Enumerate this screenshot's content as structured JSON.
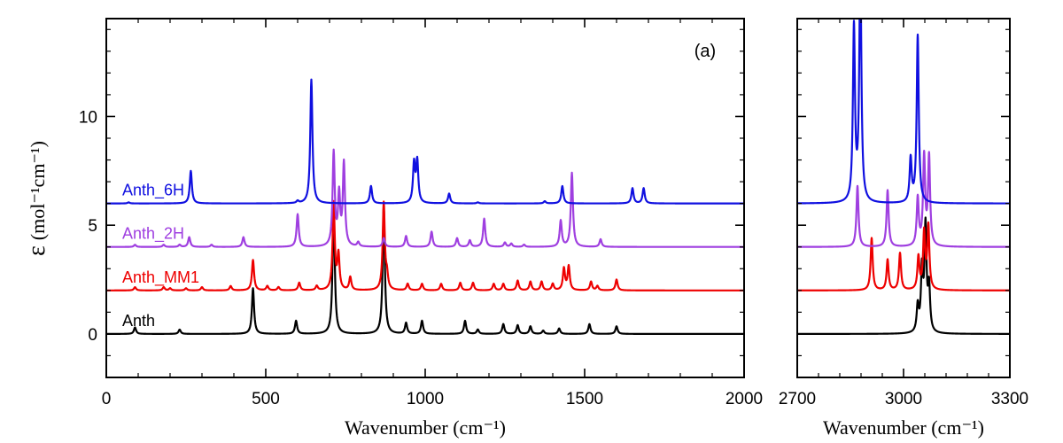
{
  "chart_data": {
    "type": "line",
    "ylabel": "ε (mol⁻¹cm⁻¹)",
    "ylabel_symbol": "ε",
    "ylabel_unit": "(mol⁻¹cm⁻¹)",
    "ylim": [
      -2,
      14.5
    ],
    "yticks": [
      "0",
      "5",
      "10"
    ],
    "panels": [
      {
        "label": "(a)",
        "xlabel": "Wavenumber (cm⁻¹)",
        "xlim": [
          0,
          2000
        ],
        "xticks": [
          "0",
          "500",
          "1000",
          "1500",
          "2000"
        ]
      },
      {
        "label": "",
        "xlabel": "Wavenumber (cm⁻¹)",
        "xlim": [
          2700,
          3300
        ],
        "xticks": [
          "2700",
          "3000",
          "3300"
        ]
      }
    ],
    "series": [
      {
        "name": "Anth",
        "color": "#000000",
        "offset": 0,
        "peaks_left": [
          [
            90,
            0.3
          ],
          [
            230,
            0.2
          ],
          [
            460,
            2.1
          ],
          [
            595,
            0.6
          ],
          [
            713,
            6.0
          ],
          [
            870,
            5.9
          ],
          [
            940,
            0.5
          ],
          [
            990,
            0.6
          ],
          [
            1125,
            0.6
          ],
          [
            1165,
            0.2
          ],
          [
            1245,
            0.45
          ],
          [
            1290,
            0.4
          ],
          [
            1330,
            0.35
          ],
          [
            1370,
            0.15
          ],
          [
            1420,
            0.25
          ],
          [
            1515,
            0.45
          ],
          [
            1600,
            0.35
          ]
        ],
        "peaks_right": [
          [
            3040,
            1.2
          ],
          [
            3052,
            2.8
          ],
          [
            3062,
            4.8
          ],
          [
            3072,
            2.0
          ]
        ]
      },
      {
        "name": "Anth_MM1",
        "color": "#ee0000",
        "offset": 2,
        "peaks_left": [
          [
            90,
            0.15
          ],
          [
            180,
            0.15
          ],
          [
            200,
            0.1
          ],
          [
            250,
            0.1
          ],
          [
            300,
            0.15
          ],
          [
            390,
            0.2
          ],
          [
            460,
            1.4
          ],
          [
            505,
            0.2
          ],
          [
            540,
            0.15
          ],
          [
            605,
            0.35
          ],
          [
            660,
            0.2
          ],
          [
            713,
            4.0
          ],
          [
            728,
            1.6
          ],
          [
            765,
            0.6
          ],
          [
            870,
            4.0
          ],
          [
            880,
            0.6
          ],
          [
            945,
            0.3
          ],
          [
            990,
            0.3
          ],
          [
            1050,
            0.3
          ],
          [
            1110,
            0.35
          ],
          [
            1150,
            0.35
          ],
          [
            1215,
            0.3
          ],
          [
            1245,
            0.3
          ],
          [
            1290,
            0.45
          ],
          [
            1330,
            0.4
          ],
          [
            1365,
            0.4
          ],
          [
            1400,
            0.3
          ],
          [
            1435,
            1.0
          ],
          [
            1450,
            1.1
          ],
          [
            1520,
            0.4
          ],
          [
            1540,
            0.2
          ],
          [
            1600,
            0.5
          ]
        ],
        "peaks_right": [
          [
            2910,
            2.4
          ],
          [
            2955,
            1.4
          ],
          [
            2990,
            1.7
          ],
          [
            3042,
            1.5
          ],
          [
            3058,
            2.6
          ],
          [
            3070,
            2.9
          ]
        ]
      },
      {
        "name": "Anth_2H",
        "color": "#9f3fe0",
        "offset": 4,
        "peaks_left": [
          [
            90,
            0.1
          ],
          [
            180,
            0.1
          ],
          [
            230,
            0.1
          ],
          [
            260,
            0.45
          ],
          [
            330,
            0.1
          ],
          [
            430,
            0.45
          ],
          [
            600,
            1.5
          ],
          [
            713,
            4.3
          ],
          [
            730,
            2.3
          ],
          [
            745,
            3.8
          ],
          [
            790,
            0.2
          ],
          [
            870,
            0.4
          ],
          [
            940,
            0.5
          ],
          [
            1020,
            0.7
          ],
          [
            1100,
            0.4
          ],
          [
            1140,
            0.3
          ],
          [
            1185,
            1.3
          ],
          [
            1250,
            0.2
          ],
          [
            1270,
            0.15
          ],
          [
            1310,
            0.1
          ],
          [
            1425,
            1.2
          ],
          [
            1460,
            3.4
          ],
          [
            1550,
            0.35
          ]
        ],
        "peaks_right": [
          [
            2870,
            2.8
          ],
          [
            2955,
            2.6
          ],
          [
            3040,
            2.2
          ],
          [
            3058,
            4.1
          ],
          [
            3072,
            4.1
          ]
        ]
      },
      {
        "name": "Anth_6H",
        "color": "#1010e0",
        "offset": 6,
        "peaks_left": [
          [
            70,
            0.05
          ],
          [
            265,
            1.5
          ],
          [
            600,
            0.1
          ],
          [
            643,
            5.7
          ],
          [
            830,
            0.8
          ],
          [
            965,
            1.8
          ],
          [
            975,
            1.9
          ],
          [
            1075,
            0.45
          ],
          [
            1165,
            0.05
          ],
          [
            1375,
            0.1
          ],
          [
            1430,
            0.8
          ],
          [
            1650,
            0.7
          ],
          [
            1685,
            0.7
          ]
        ],
        "peaks_right": [
          [
            2860,
            8.0
          ],
          [
            2878,
            11.0
          ],
          [
            3020,
            2.0
          ],
          [
            3040,
            7.7
          ]
        ]
      }
    ]
  }
}
